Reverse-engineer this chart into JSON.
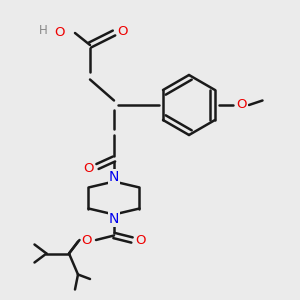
{
  "bg_color": "#ebebeb",
  "bond_color": "#1a1a1a",
  "N_color": "#0000ee",
  "O_color": "#ee0000",
  "H_color": "#888888",
  "line_width": 1.8,
  "figsize": [
    3.0,
    3.0
  ],
  "dpi": 100,
  "xlim": [
    0,
    10
  ],
  "ylim": [
    0,
    10
  ]
}
